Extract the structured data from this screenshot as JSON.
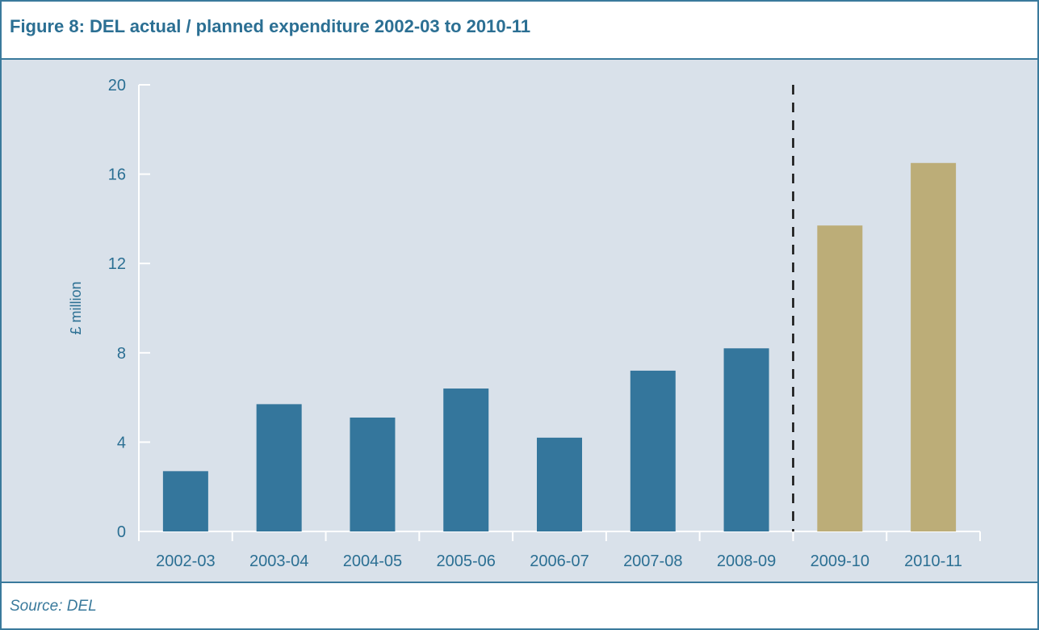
{
  "title": "Figure 8: DEL actual / planned expenditure 2002-03 to 2010-11",
  "source": "Source: DEL",
  "colors": {
    "actual": "#34769c",
    "planned": "#bcad78",
    "axis": "#ffffff",
    "text": "#2b6f93",
    "background": "#d9e1ea"
  },
  "chart_data": {
    "type": "bar",
    "title": "Figure 8: DEL actual / planned expenditure 2002-03 to 2010-11",
    "xlabel": "",
    "ylabel": "£ million",
    "ylim": [
      0,
      20
    ],
    "yticks": [
      0,
      4,
      8,
      12,
      16,
      20
    ],
    "grid": false,
    "categories": [
      "2002-03",
      "2003-04",
      "2004-05",
      "2005-06",
      "2006-07",
      "2007-08",
      "2008-09",
      "2009-10",
      "2010-11"
    ],
    "values": [
      2.7,
      5.7,
      5.1,
      6.4,
      4.2,
      7.2,
      8.2,
      13.7,
      16.5
    ],
    "planned_from": "2009-10",
    "divider_between": [
      "2008-09",
      "2009-10"
    ]
  }
}
